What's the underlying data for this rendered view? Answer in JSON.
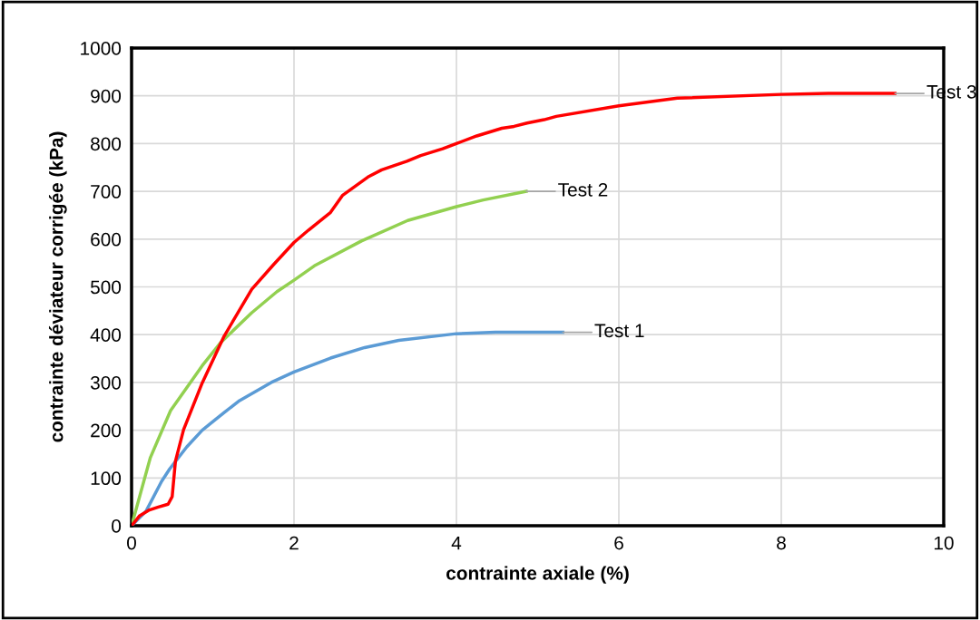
{
  "chart_data": {
    "type": "line",
    "xlabel": "contrainte axiale (%)",
    "ylabel": "contrainte déviateur corrigée (kPa)",
    "xlim": [
      0,
      10
    ],
    "xticks": [
      0,
      2,
      4,
      6,
      8,
      10
    ],
    "ylim": [
      0,
      1000
    ],
    "yticks": [
      0,
      100,
      200,
      300,
      400,
      500,
      600,
      700,
      800,
      900,
      1000
    ],
    "grid": true,
    "legend": false,
    "marker": "none",
    "line_style": "solid",
    "series": [
      {
        "name": "Test 1",
        "color": "#5b9bd5",
        "x": [
          0,
          0.18,
          0.37,
          0.47,
          0.68,
          0.87,
          0.98,
          1.14,
          1.33,
          1.72,
          2.0,
          2.45,
          2.87,
          3.29,
          4.0,
          4.48,
          5.31
        ],
        "values": [
          0,
          31,
          93,
          119,
          165,
          200,
          215,
          237,
          262,
          300,
          322,
          351,
          373,
          388,
          402,
          405,
          405
        ]
      },
      {
        "name": "Test 2",
        "color": "#92d050",
        "x": [
          0,
          0.23,
          0.48,
          0.87,
          1.1,
          1.48,
          1.79,
          2.0,
          2.25,
          2.83,
          3.4,
          4.0,
          4.33,
          4.86
        ],
        "values": [
          0,
          142,
          241,
          335,
          384,
          446,
          490,
          514,
          544,
          596,
          639,
          668,
          682,
          700
        ]
      },
      {
        "name": "Test 3",
        "color": "#ff0000",
        "x": [
          0,
          0.1,
          0.22,
          0.33,
          0.45,
          0.5,
          0.54,
          0.64,
          0.87,
          1.14,
          1.48,
          1.75,
          2.0,
          2.18,
          2.45,
          2.6,
          2.91,
          3.08,
          3.39,
          3.56,
          3.83,
          4.0,
          4.25,
          4.56,
          4.71,
          4.87,
          5.08,
          5.23,
          6.0,
          6.72,
          8.0,
          8.58,
          9.4
        ],
        "values": [
          0,
          21,
          33,
          39,
          45,
          61,
          135,
          201,
          299,
          397,
          495,
          547,
          593,
          619,
          656,
          692,
          730,
          745,
          763,
          775,
          789,
          800,
          816,
          832,
          836,
          843,
          850,
          857,
          879,
          895,
          903,
          905,
          905
        ]
      }
    ]
  }
}
